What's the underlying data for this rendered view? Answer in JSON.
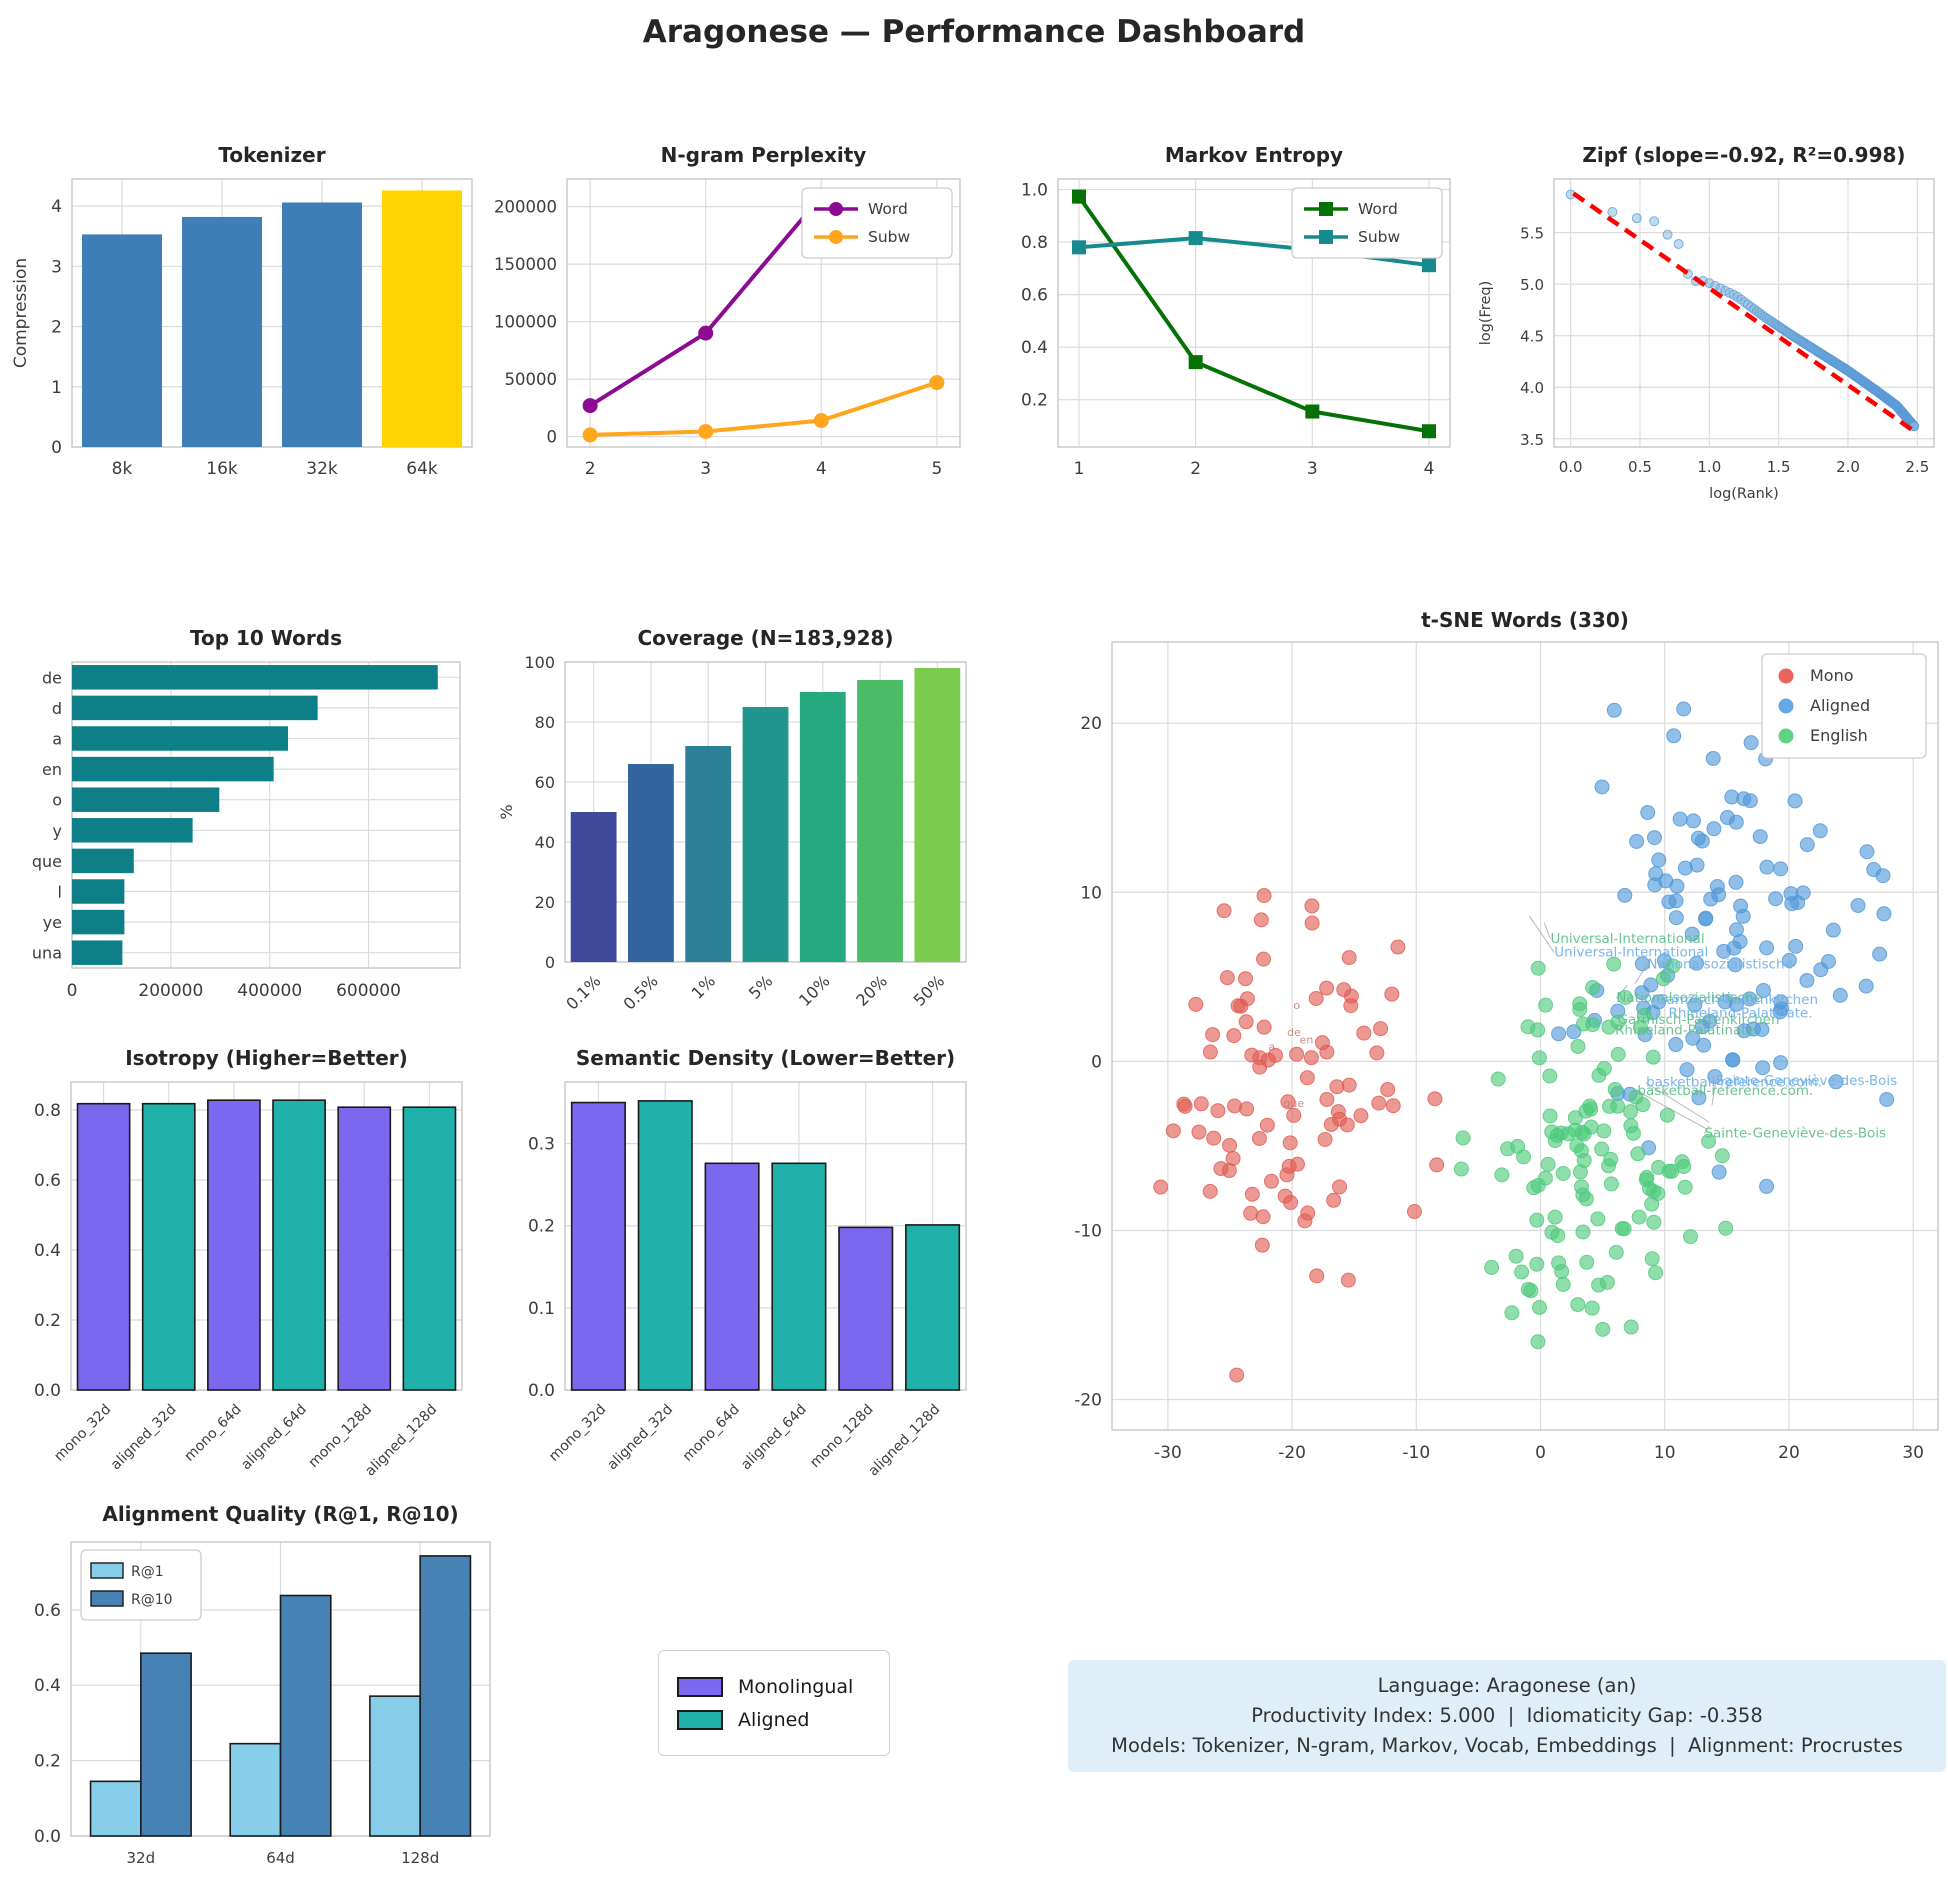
{
  "page_title": "Aragonese — Performance Dashboard",
  "chart_data": [
    {
      "id": "tokenizer",
      "type": "bar",
      "title": "Tokenizer",
      "ylabel": "Compression",
      "categories": [
        "8k",
        "16k",
        "32k",
        "64k"
      ],
      "values": [
        3.53,
        3.82,
        4.06,
        4.26
      ],
      "bar_colors": [
        "#3e7fb8",
        "#3e7fb8",
        "#3e7fb8",
        "#ffd400"
      ],
      "ylim": [
        0,
        4.45
      ],
      "yticks": [
        0,
        1,
        2,
        3,
        4
      ],
      "ytick_labels": [
        "0",
        "1",
        "2",
        "3",
        "4"
      ]
    },
    {
      "id": "ngram",
      "type": "line",
      "title": "N-gram Perplexity",
      "x": [
        2,
        3,
        4,
        5
      ],
      "xtick_labels": [
        "2",
        "3",
        "4",
        "5"
      ],
      "xlim": [
        1.8,
        5.2
      ],
      "ylim": [
        -9000,
        224000
      ],
      "yticks": [
        0,
        50000,
        100000,
        150000,
        200000
      ],
      "ytick_labels": [
        "0",
        "50000",
        "100000",
        "150000",
        "200000"
      ],
      "series": [
        {
          "name": "Word",
          "color": "#8b0b93",
          "marker": "circle",
          "values": [
            27000,
            90000,
            209000,
            210000
          ]
        },
        {
          "name": "Subw",
          "color": "#ffa51e",
          "marker": "circle",
          "values": [
            1500,
            4500,
            14000,
            47000
          ]
        }
      ],
      "legend_pos": "top-right"
    },
    {
      "id": "markov",
      "type": "line",
      "title": "Markov Entropy",
      "x": [
        1,
        2,
        3,
        4
      ],
      "xtick_labels": [
        "1",
        "2",
        "3",
        "4"
      ],
      "xlim": [
        0.82,
        4.18
      ],
      "ylim": [
        0.02,
        1.04
      ],
      "yticks": [
        0.2,
        0.4,
        0.6,
        0.8,
        1.0
      ],
      "ytick_labels": [
        "0.2",
        "0.4",
        "0.6",
        "0.8",
        "1.0"
      ],
      "series": [
        {
          "name": "Word",
          "color": "#067106",
          "marker": "square",
          "values": [
            0.973,
            0.343,
            0.155,
            0.08
          ]
        },
        {
          "name": "Subw",
          "color": "#178a8e",
          "marker": "square",
          "values": [
            0.78,
            0.815,
            0.77,
            0.712
          ]
        }
      ],
      "legend_pos": "top-right"
    },
    {
      "id": "zipf",
      "type": "scatter_zipf",
      "title": "Zipf (slope=-0.92, R²=0.998)",
      "xlabel": "log(Rank)",
      "ylabel": "log(Freq)",
      "xlim": [
        -0.12,
        2.62
      ],
      "ylim": [
        3.42,
        6.02
      ],
      "xticks": [
        0.0,
        0.5,
        1.0,
        1.5,
        2.0,
        2.5
      ],
      "xtick_labels": [
        "0.0",
        "0.5",
        "1.0",
        "1.5",
        "2.0",
        "2.5"
      ],
      "yticks": [
        3.5,
        4.0,
        4.5,
        5.0,
        5.5
      ],
      "ytick_labels": [
        "3.5",
        "4.0",
        "4.5",
        "5.0",
        "5.5"
      ],
      "point_color": "#7fb3dc",
      "point_edge": "#5b9bd5",
      "top10_logfreq": [
        5.87,
        5.7,
        5.64,
        5.61,
        5.48,
        5.39,
        5.1,
        5.03,
        5.03,
        5.01
      ],
      "tail_curve": [
        [
          1.0,
          5.01
        ],
        [
          1.2,
          4.88
        ],
        [
          1.4,
          4.68
        ],
        [
          1.6,
          4.5
        ],
        [
          1.8,
          4.33
        ],
        [
          2.0,
          4.16
        ],
        [
          2.2,
          3.97
        ],
        [
          2.35,
          3.82
        ],
        [
          2.477,
          3.62
        ]
      ],
      "n_points": 300,
      "trend": {
        "color": "#ff0000",
        "x0": 0.02,
        "y0": 5.88,
        "x1": 2.48,
        "y1": 3.57
      }
    },
    {
      "id": "top_words",
      "type": "barh",
      "title": "Top 10 Words",
      "categories": [
        "de",
        "d",
        "a",
        "en",
        "o",
        "y",
        "que",
        "l",
        "ye",
        "una"
      ],
      "values": [
        740000,
        497000,
        437000,
        408000,
        298000,
        244000,
        125000,
        106000,
        106000,
        102000
      ],
      "color": "#0e7f87",
      "xlim": [
        0,
        785000
      ],
      "xticks": [
        0,
        200000,
        400000,
        600000
      ],
      "xtick_labels": [
        "0",
        "200000",
        "400000",
        "600000"
      ]
    },
    {
      "id": "coverage",
      "type": "bar",
      "title": "Coverage (N=183,928)",
      "ylabel": "%",
      "categories": [
        "0.1%",
        "0.5%",
        "1%",
        "5%",
        "10%",
        "20%",
        "50%"
      ],
      "values": [
        50,
        66,
        72,
        85,
        90,
        94,
        98
      ],
      "bar_colors": [
        "#3f4a9b",
        "#35659f",
        "#2b7f97",
        "#20968e",
        "#27a97f",
        "#4cbb67",
        "#7bcb4f"
      ],
      "ylim": [
        0,
        100
      ],
      "yticks": [
        0,
        20,
        40,
        60,
        80,
        100
      ],
      "ytick_labels": [
        "0",
        "20",
        "40",
        "60",
        "80",
        "100"
      ],
      "rotate_xticks": true
    },
    {
      "id": "tsne",
      "type": "scatter_tsne",
      "title": "t-SNE Words (330)",
      "xlim": [
        -34.5,
        32
      ],
      "ylim": [
        -21.8,
        24.8
      ],
      "xticks": [
        -30,
        -20,
        -10,
        0,
        10,
        20,
        30
      ],
      "xtick_labels": [
        "-30",
        "-20",
        "-10",
        "0",
        "10",
        "20",
        "30"
      ],
      "yticks": [
        -20,
        -10,
        0,
        10,
        20
      ],
      "ytick_labels": [
        "-20",
        "-10",
        "0",
        "10",
        "20"
      ],
      "clusters": [
        {
          "name": "Mono",
          "color": "#e05a52",
          "center": [
            -21,
            -1.5
          ],
          "spread": [
            5.2,
            5.2
          ],
          "count": 90
        },
        {
          "name": "Aligned",
          "color": "#4f97d9",
          "center": [
            15.5,
            8.5
          ],
          "spread": [
            6.2,
            6.2
          ],
          "count": 120
        },
        {
          "name": "English",
          "color": "#4ec97b",
          "center": [
            4,
            -6
          ],
          "spread": [
            4.8,
            5.2
          ],
          "count": 120
        }
      ],
      "annotations": [
        {
          "text": "Universal-International",
          "color": "#5fbe8a",
          "x": 0.8,
          "y": 7.0,
          "tx": 0.3,
          "ty": 8.2
        },
        {
          "text": "Universal-International",
          "color": "#6fb0e8",
          "x": 1.1,
          "y": 6.2,
          "tx": -0.9,
          "ty": 8.6
        },
        {
          "text": "Nationalsozialistische",
          "color": "#6fb0e8",
          "x": 8.6,
          "y": 5.5,
          "tx": 7.6,
          "ty": 4.6
        },
        {
          "text": "Nationalsozialistische",
          "color": "#5fbe8a",
          "x": 6.1,
          "y": 3.5,
          "tx": 7.0,
          "ty": 4.5
        },
        {
          "text": "Garmisch-Partenkirchen",
          "color": "#6fb0e8",
          "x": 9.3,
          "y": 3.4
        },
        {
          "text": "Rhineland-Palatinate.",
          "color": "#6fb0e8",
          "x": 10.3,
          "y": 2.6
        },
        {
          "text": "Garmisch-Partenkirchen",
          "color": "#5fbe8a",
          "x": 6.2,
          "y": 2.2
        },
        {
          "text": "Rhineland-Palatinate.",
          "color": "#5fbe8a",
          "x": 6.0,
          "y": 1.6
        },
        {
          "text": "basketball-reference.com.",
          "color": "#6fb0e8",
          "x": 8.5,
          "y": -1.5,
          "tx": 13.6,
          "ty": -3.6
        },
        {
          "text": "basketball-reference.com.",
          "color": "#5fbe8a",
          "x": 7.8,
          "y": -2.0,
          "tx": 13.4,
          "ty": -4.0
        },
        {
          "text": "Sainte-Geneviève-des-Bois",
          "color": "#6fb0e8",
          "x": 14.1,
          "y": -1.4,
          "tx": 13.8,
          "ty": -2.6
        },
        {
          "text": "Sainte-Geneviève-des-Bois",
          "color": "#5fbe8a",
          "x": 13.2,
          "y": -4.5,
          "tx": 13.6,
          "ty": -3.8
        }
      ],
      "word_labels": [
        {
          "text": "o",
          "x": -19.9,
          "y": 3.1
        },
        {
          "text": "de",
          "x": -20.4,
          "y": 1.5
        },
        {
          "text": "en",
          "x": -19.4,
          "y": 1.05
        },
        {
          "text": "a",
          "x": -21.9,
          "y": 0.65
        },
        {
          "text": "que",
          "x": -20.7,
          "y": -2.7
        }
      ],
      "legend": [
        "Mono",
        "Aligned",
        "English"
      ],
      "legend_colors": [
        "#e8645c",
        "#62a9e8",
        "#5ed382"
      ]
    },
    {
      "id": "isotropy",
      "type": "bar",
      "title": "Isotropy (Higher=Better)",
      "categories": [
        "mono_32d",
        "aligned_32d",
        "mono_64d",
        "aligned_64d",
        "mono_128d",
        "aligned_128d"
      ],
      "values": [
        0.818,
        0.818,
        0.828,
        0.828,
        0.808,
        0.808
      ],
      "bar_colors": [
        "#7b68ee",
        "#20b2aa",
        "#7b68ee",
        "#20b2aa",
        "#7b68ee",
        "#20b2aa"
      ],
      "edge_color": "#1a1a1a",
      "ylim": [
        0,
        0.88
      ],
      "yticks": [
        0.0,
        0.2,
        0.4,
        0.6,
        0.8
      ],
      "ytick_labels": [
        "0.0",
        "0.2",
        "0.4",
        "0.6",
        "0.8"
      ],
      "rotate_xticks": true
    },
    {
      "id": "density",
      "type": "bar",
      "title": "Semantic Density (Lower=Better)",
      "categories": [
        "mono_32d",
        "aligned_32d",
        "mono_64d",
        "aligned_64d",
        "mono_128d",
        "aligned_128d"
      ],
      "values": [
        0.35,
        0.352,
        0.276,
        0.276,
        0.198,
        0.201
      ],
      "bar_colors": [
        "#7b68ee",
        "#20b2aa",
        "#7b68ee",
        "#20b2aa",
        "#7b68ee",
        "#20b2aa"
      ],
      "edge_color": "#1a1a1a",
      "ylim": [
        0,
        0.375
      ],
      "yticks": [
        0.0,
        0.1,
        0.2,
        0.3
      ],
      "ytick_labels": [
        "0.0",
        "0.1",
        "0.2",
        "0.3"
      ],
      "rotate_xticks": true
    },
    {
      "id": "alignment",
      "type": "grouped_bar",
      "title": "Alignment Quality (R@1, R@10)",
      "categories": [
        "32d",
        "64d",
        "128d"
      ],
      "series": [
        {
          "name": "R@1",
          "color": "#87ceeb",
          "values": [
            0.145,
            0.245,
            0.371
          ]
        },
        {
          "name": "R@10",
          "color": "#4682b4",
          "values": [
            0.485,
            0.638,
            0.743
          ]
        }
      ],
      "edge_color": "#1a1a1a",
      "ylim": [
        0,
        0.78
      ],
      "yticks": [
        0.0,
        0.2,
        0.4,
        0.6
      ],
      "ytick_labels": [
        "0.0",
        "0.2",
        "0.4",
        "0.6"
      ],
      "legend_pos": "top-left"
    }
  ],
  "legend_box": {
    "items": [
      {
        "label": "Monolingual",
        "color": "#7b68ee"
      },
      {
        "label": "Aligned",
        "color": "#20b2aa"
      }
    ]
  },
  "info_box": {
    "lines": [
      "Language: Aragonese (an)",
      "Productivity Index: 5.000  |  Idiomaticity Gap: -0.358",
      "Models: Tokenizer, N-gram, Markov, Vocab, Embeddings  |  Alignment: Procrustes"
    ],
    "bg": "#e0eff7"
  }
}
